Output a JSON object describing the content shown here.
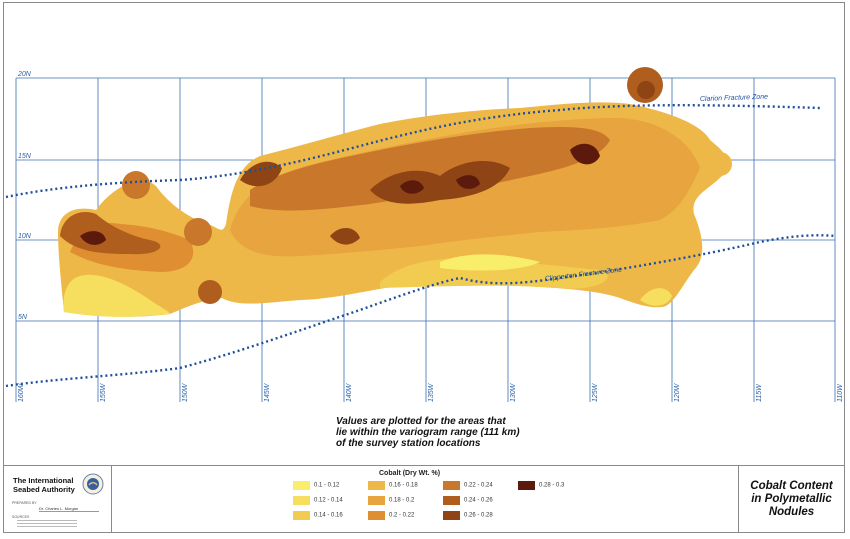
{
  "map": {
    "lat_labels": [
      "20N",
      "15N",
      "10N",
      "5N"
    ],
    "lon_labels": [
      "160W",
      "155W",
      "150W",
      "145W",
      "140W",
      "135W",
      "130W",
      "125W",
      "120W",
      "115W",
      "110W"
    ],
    "clarion_label": "Clarion Fracture Zone",
    "clipperton_label": "Clipperton Fracture Zone"
  },
  "note": {
    "line1": "Values are plotted for the areas that",
    "line2": "lie within the variogram range (111 km)",
    "line3": "of the survey station locations"
  },
  "footer": {
    "org_line1": "The International",
    "org_line2": "Seabed Authority",
    "prepared_by": "PREPARED BY",
    "author": "Dr. Charles L. Morgan",
    "sources": "SOURCES"
  },
  "legend": {
    "title": "Cobalt (Dry Wt. %)",
    "items": [
      {
        "label": "0.1 - 0.12",
        "color": "#f9ee6a"
      },
      {
        "label": "0.12 - 0.14",
        "color": "#f6df5e"
      },
      {
        "label": "0.14 - 0.16",
        "color": "#f2cc50"
      },
      {
        "label": "0.16 - 0.18",
        "color": "#eeb849"
      },
      {
        "label": "0.18 - 0.2",
        "color": "#e8a43e"
      },
      {
        "label": "0.2 - 0.22",
        "color": "#df8f32"
      },
      {
        "label": "0.22 - 0.24",
        "color": "#c9772b"
      },
      {
        "label": "0.24 - 0.26",
        "color": "#b05e1e"
      },
      {
        "label": "0.26 - 0.28",
        "color": "#8e4414"
      },
      {
        "label": "0.28 - 0.3",
        "color": "#5c1a0c"
      }
    ]
  },
  "title": {
    "line1": "Cobalt Content",
    "line2": "in Polymetallic",
    "line3": "Nodules"
  }
}
